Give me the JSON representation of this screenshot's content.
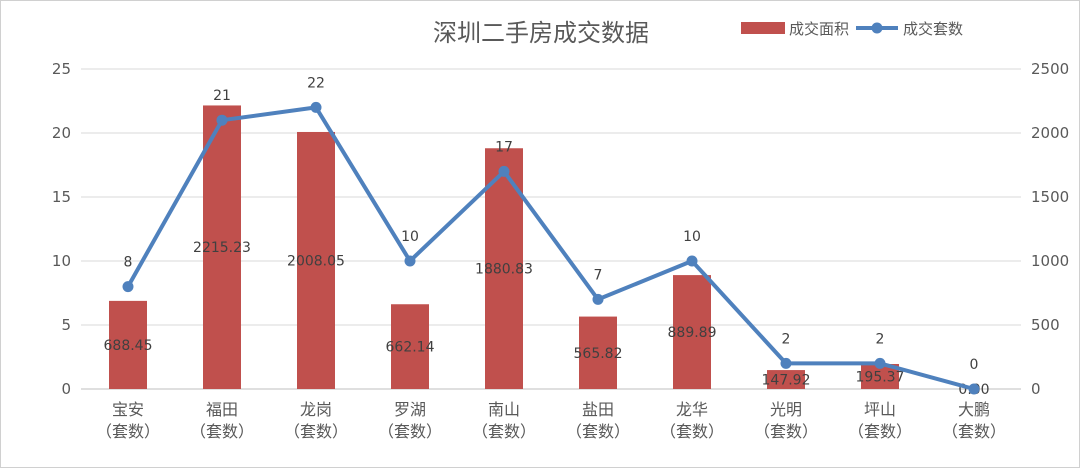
{
  "chart_data": {
    "type": "bar+line",
    "title": "深圳二手房成交数据",
    "categories": [
      "宝安",
      "福田",
      "龙岗",
      "罗湖",
      "南山",
      "盐田",
      "龙华",
      "光明",
      "坪山",
      "大鹏"
    ],
    "category_suffix": "（套数）",
    "series": [
      {
        "name": "成交面积",
        "type": "bar",
        "axis": "right",
        "color": "#c0504d",
        "values": [
          688.45,
          2215.23,
          2008.05,
          662.14,
          1880.83,
          565.82,
          889.89,
          147.92,
          195.37,
          0.0
        ],
        "labels": [
          "688.45",
          "2215.23",
          "2008.05",
          "662.14",
          "1880.83",
          "565.82",
          "889.89",
          "147.92",
          "195.37",
          "0.00"
        ]
      },
      {
        "name": "成交套数",
        "type": "line",
        "axis": "left",
        "color": "#4f81bd",
        "values": [
          8,
          21,
          22,
          10,
          17,
          7,
          10,
          2,
          2,
          0
        ],
        "labels": [
          "8",
          "21",
          "22",
          "10",
          "17",
          "7",
          "10",
          "2",
          "2",
          "0"
        ]
      }
    ],
    "y_left": {
      "min": 0,
      "max": 25,
      "ticks": [
        "0",
        "5",
        "10",
        "15",
        "20",
        "25"
      ]
    },
    "y_right": {
      "min": 0,
      "max": 2500,
      "ticks": [
        "0",
        "500",
        "1000",
        "1500",
        "2000",
        "2500"
      ]
    },
    "grid": true,
    "legend_position": "top-right"
  }
}
